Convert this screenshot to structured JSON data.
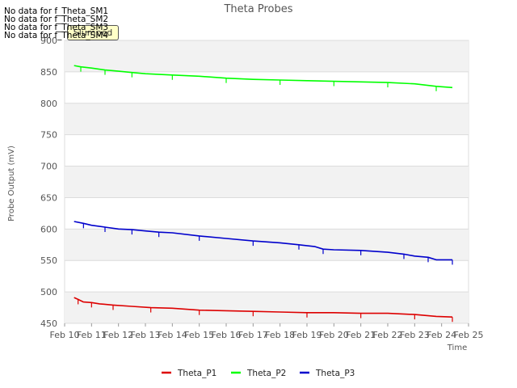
{
  "chart_data": {
    "type": "line",
    "title": "Theta Probes",
    "xlabel": "Time",
    "ylabel": "Probe Output (mV)",
    "ylim": [
      450,
      900
    ],
    "yticks": [
      450,
      500,
      550,
      600,
      650,
      700,
      750,
      800,
      850,
      900
    ],
    "xlim": [
      10,
      25
    ],
    "xticks": [
      "Feb 10",
      "Feb 11",
      "Feb 12",
      "Feb 13",
      "Feb 14",
      "Feb 15",
      "Feb 16",
      "Feb 17",
      "Feb 18",
      "Feb 19",
      "Feb 20",
      "Feb 21",
      "Feb 22",
      "Feb 23",
      "Feb 24",
      "Feb 25"
    ],
    "grid": true,
    "legend_position": "bottom",
    "series": [
      {
        "name": "Theta_P1",
        "color": "#dd0000",
        "x": [
          10.35,
          10.5,
          10.7,
          11.0,
          11.3,
          11.8,
          12.5,
          13.2,
          14.0,
          15.0,
          16.0,
          17.0,
          18.0,
          19.0,
          20.0,
          21.0,
          22.0,
          23.0,
          23.8,
          24.4
        ],
        "y": [
          491,
          488,
          484,
          483,
          481,
          479,
          477,
          475,
          474,
          471,
          470,
          469,
          468,
          467,
          467,
          466,
          466,
          464,
          461,
          460
        ]
      },
      {
        "name": "Theta_P2",
        "color": "#00ff00",
        "x": [
          10.35,
          10.6,
          11.0,
          11.5,
          12.0,
          12.5,
          13.0,
          14.0,
          15.0,
          16.0,
          17.0,
          18.0,
          19.0,
          20.0,
          21.0,
          22.0,
          23.0,
          23.8,
          24.4
        ],
        "y": [
          860,
          858,
          856,
          853,
          851,
          849,
          847,
          845,
          843,
          840,
          838,
          837,
          836,
          835,
          834,
          833,
          831,
          827,
          825
        ]
      },
      {
        "name": "Theta_P3",
        "color": "#0000cc",
        "x": [
          10.35,
          10.7,
          11.0,
          11.5,
          12.0,
          12.5,
          13.0,
          13.5,
          14.0,
          15.0,
          16.0,
          17.0,
          18.0,
          18.7,
          19.3,
          19.6,
          20.0,
          21.0,
          22.0,
          22.6,
          23.0,
          23.5,
          23.8,
          24.4
        ],
        "y": [
          612,
          609,
          606,
          603,
          600,
          599,
          597,
          595,
          594,
          589,
          585,
          581,
          578,
          575,
          572,
          568,
          567,
          566,
          563,
          560,
          557,
          555,
          551,
          551
        ]
      }
    ]
  },
  "nodata_messages": [
    "No data for f_Theta_SM1",
    "No data for f_Theta_SM2",
    "No data for f_Theta_SM3",
    "No data for f_Theta_SM4"
  ],
  "badge_label": "Slumped"
}
